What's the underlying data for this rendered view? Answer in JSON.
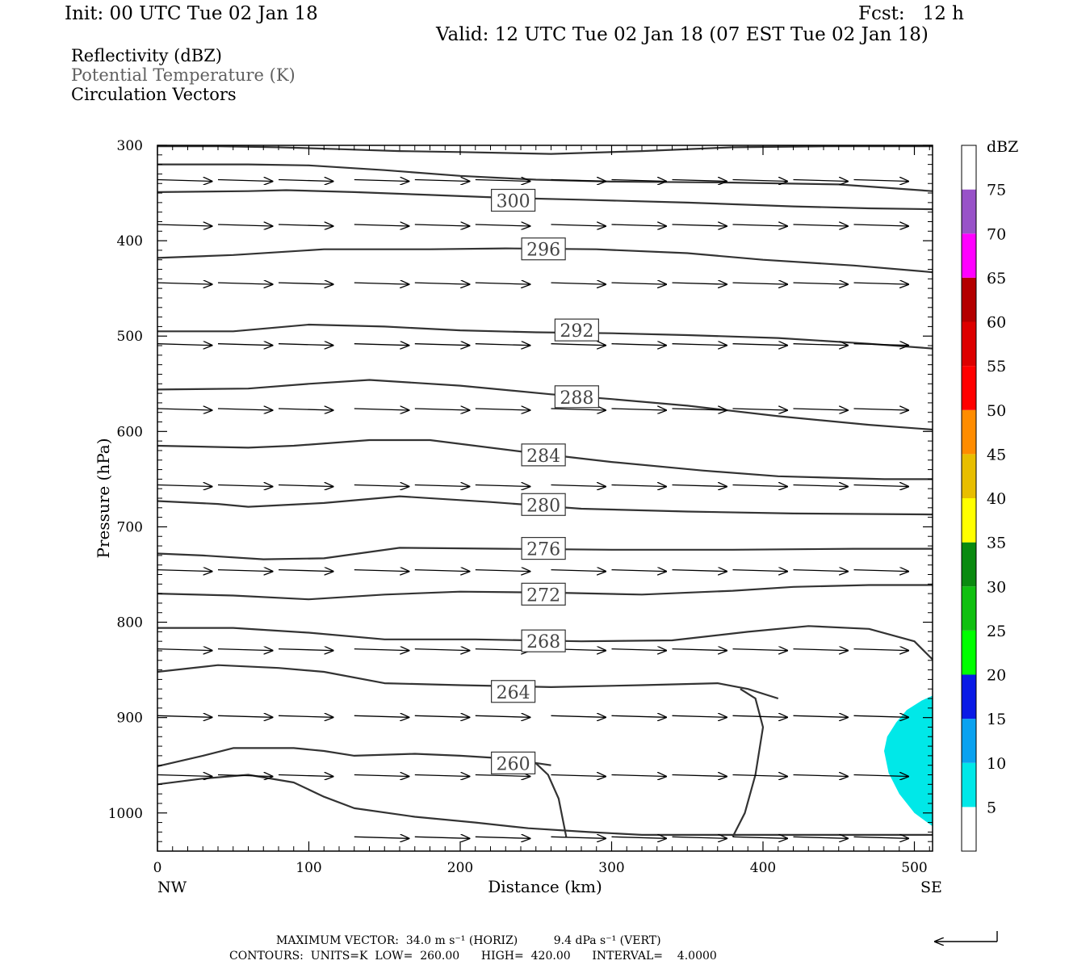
{
  "header": {
    "init": "Init: 00 UTC Tue 02 Jan 18",
    "fcst": "Fcst:   12 h",
    "valid": "Valid: 12 UTC Tue 02 Jan 18 (07 EST Tue 02 Jan 18)"
  },
  "fields": {
    "reflectivity": "Reflectivity (dBZ)",
    "theta": "Potential Temperature (K)",
    "vectors": "Circulation Vectors"
  },
  "footer": {
    "max_vector": "MAXIMUM VECTOR:  34.0 m s⁻¹ (HORIZ)          9.4 dPa s⁻¹ (VERT)",
    "contours": "CONTOURS:  UNITS=K  LOW=  260.00      HIGH=  420.00      INTERVAL=    4.0000"
  },
  "chart_data": {
    "type": "line",
    "title": "",
    "xlabel": "Distance (km)",
    "ylabel": "Pressure (hPa)",
    "x_end_labels": {
      "left": "NW",
      "right": "SE"
    },
    "xlim": [
      0,
      512
    ],
    "ylim": [
      1040,
      300
    ],
    "x_ticks": [
      "0",
      "100",
      "200",
      "300",
      "400",
      "500"
    ],
    "y_ticks": [
      "300",
      "400",
      "500",
      "600",
      "700",
      "800",
      "900",
      "1000"
    ],
    "contour_units": "K",
    "contour_low": 260,
    "contour_high": 420,
    "contour_interval": 4,
    "contour_labels": [
      {
        "value": "300",
        "x": 235,
        "p": 358
      },
      {
        "value": "296",
        "x": 255,
        "p": 409
      },
      {
        "value": "292",
        "x": 277,
        "p": 494
      },
      {
        "value": "288",
        "x": 277,
        "p": 564
      },
      {
        "value": "284",
        "x": 255,
        "p": 625
      },
      {
        "value": "280",
        "x": 255,
        "p": 677
      },
      {
        "value": "276",
        "x": 255,
        "p": 723
      },
      {
        "value": "272",
        "x": 255,
        "p": 771
      },
      {
        "value": "268",
        "x": 255,
        "p": 820
      },
      {
        "value": "264",
        "x": 235,
        "p": 873
      },
      {
        "value": "260",
        "x": 235,
        "p": 948
      }
    ],
    "isentropes": [
      [
        [
          0,
          301
        ],
        [
          40,
          301
        ],
        [
          80,
          302
        ],
        [
          120,
          304
        ],
        [
          160,
          306
        ],
        [
          200,
          307
        ],
        [
          260,
          309
        ],
        [
          320,
          306
        ],
        [
          380,
          302
        ],
        [
          440,
          301
        ],
        [
          480,
          301
        ],
        [
          512,
          301
        ]
      ],
      [
        [
          0,
          320
        ],
        [
          60,
          320
        ],
        [
          100,
          321
        ],
        [
          150,
          326
        ],
        [
          200,
          332
        ],
        [
          250,
          336
        ],
        [
          300,
          338
        ],
        [
          380,
          339
        ],
        [
          450,
          341
        ],
        [
          512,
          348
        ]
      ],
      [
        [
          0,
          349
        ],
        [
          60,
          348
        ],
        [
          85,
          347
        ],
        [
          130,
          349
        ],
        [
          180,
          352
        ],
        [
          230,
          355
        ],
        [
          280,
          357
        ],
        [
          350,
          360
        ],
        [
          420,
          364
        ],
        [
          470,
          366
        ],
        [
          512,
          367
        ]
      ],
      [
        [
          0,
          418
        ],
        [
          50,
          415
        ],
        [
          110,
          409
        ],
        [
          180,
          409
        ],
        [
          230,
          408
        ],
        [
          290,
          409
        ],
        [
          350,
          413
        ],
        [
          400,
          420
        ],
        [
          460,
          426
        ],
        [
          512,
          433
        ]
      ],
      [
        [
          0,
          495
        ],
        [
          50,
          495
        ],
        [
          100,
          488
        ],
        [
          150,
          490
        ],
        [
          200,
          494
        ],
        [
          250,
          496
        ],
        [
          300,
          497
        ],
        [
          350,
          499
        ],
        [
          410,
          502
        ],
        [
          470,
          508
        ],
        [
          512,
          513
        ]
      ],
      [
        [
          0,
          556
        ],
        [
          60,
          555
        ],
        [
          100,
          550
        ],
        [
          140,
          546
        ],
        [
          200,
          552
        ],
        [
          260,
          561
        ],
        [
          300,
          566
        ],
        [
          350,
          573
        ],
        [
          410,
          584
        ],
        [
          470,
          593
        ],
        [
          512,
          598
        ]
      ],
      [
        [
          0,
          615
        ],
        [
          60,
          617
        ],
        [
          90,
          615
        ],
        [
          140,
          609
        ],
        [
          180,
          609
        ],
        [
          240,
          621
        ],
        [
          300,
          632
        ],
        [
          360,
          641
        ],
        [
          410,
          647
        ],
        [
          480,
          650
        ],
        [
          512,
          650
        ]
      ],
      [
        [
          0,
          673
        ],
        [
          40,
          676
        ],
        [
          60,
          679
        ],
        [
          110,
          675
        ],
        [
          160,
          668
        ],
        [
          220,
          674
        ],
        [
          280,
          681
        ],
        [
          350,
          684
        ],
        [
          420,
          686
        ],
        [
          512,
          687
        ]
      ],
      [
        [
          0,
          728
        ],
        [
          30,
          730
        ],
        [
          70,
          734
        ],
        [
          110,
          733
        ],
        [
          160,
          722
        ],
        [
          230,
          723
        ],
        [
          300,
          724
        ],
        [
          380,
          724
        ],
        [
          460,
          723
        ],
        [
          512,
          723
        ]
      ],
      [
        [
          0,
          770
        ],
        [
          50,
          772
        ],
        [
          100,
          776
        ],
        [
          150,
          771
        ],
        [
          200,
          768
        ],
        [
          260,
          769
        ],
        [
          320,
          771
        ],
        [
          380,
          767
        ],
        [
          420,
          763
        ],
        [
          470,
          761
        ],
        [
          512,
          761
        ]
      ],
      [
        [
          0,
          806
        ],
        [
          50,
          806
        ],
        [
          100,
          811
        ],
        [
          150,
          818
        ],
        [
          210,
          818
        ],
        [
          280,
          820
        ],
        [
          340,
          819
        ],
        [
          390,
          810
        ],
        [
          430,
          804
        ],
        [
          470,
          807
        ],
        [
          500,
          820
        ],
        [
          512,
          839
        ]
      ],
      [
        [
          0,
          852
        ],
        [
          40,
          845
        ],
        [
          80,
          848
        ],
        [
          110,
          852
        ],
        [
          150,
          864
        ],
        [
          200,
          866
        ],
        [
          260,
          868
        ],
        [
          320,
          866
        ],
        [
          370,
          864
        ],
        [
          390,
          870
        ],
        [
          410,
          880
        ]
      ],
      [
        [
          0,
          951
        ],
        [
          30,
          940
        ],
        [
          50,
          932
        ],
        [
          90,
          932
        ],
        [
          110,
          935
        ],
        [
          130,
          940
        ],
        [
          170,
          938
        ],
        [
          200,
          940
        ],
        [
          230,
          943
        ],
        [
          260,
          950
        ]
      ],
      [
        [
          0,
          970
        ],
        [
          30,
          964
        ],
        [
          60,
          960
        ],
        [
          90,
          968
        ],
        [
          110,
          983
        ],
        [
          130,
          995
        ],
        [
          170,
          1004
        ],
        [
          210,
          1010
        ],
        [
          245,
          1016
        ],
        [
          285,
          1020
        ],
        [
          320,
          1023
        ],
        [
          380,
          1023
        ],
        [
          450,
          1023
        ],
        [
          512,
          1023
        ]
      ]
    ],
    "vertical_contours": [
      [
        [
          250,
          948
        ],
        [
          258,
          960
        ],
        [
          265,
          985
        ],
        [
          270,
          1025
        ]
      ],
      [
        [
          385,
          870
        ],
        [
          395,
          880
        ],
        [
          400,
          910
        ],
        [
          395,
          960
        ],
        [
          388,
          1000
        ],
        [
          380,
          1025
        ]
      ]
    ],
    "reflectivity_scale": {
      "unit": "dBZ",
      "labels": [
        "5",
        "10",
        "15",
        "20",
        "25",
        "30",
        "35",
        "40",
        "45",
        "50",
        "55",
        "60",
        "65",
        "70",
        "75"
      ],
      "colors": [
        "#00e8e8",
        "#0aa2f0",
        "#0a1ae6",
        "#00ff00",
        "#10c010",
        "#0a8a10",
        "#ffff00",
        "#e8be00",
        "#ff8c00",
        "#ff0000",
        "#dd0000",
        "#b40000",
        "#ff00ff",
        "#9852c8",
        "#ffffff"
      ]
    },
    "reflectivity_area": {
      "dbz": "5-10",
      "outline": [
        [
          512,
          877
        ],
        [
          505,
          882
        ],
        [
          495,
          892
        ],
        [
          488,
          905
        ],
        [
          482,
          920
        ],
        [
          480,
          935
        ],
        [
          483,
          958
        ],
        [
          490,
          980
        ],
        [
          500,
          1000
        ],
        [
          512,
          1014
        ]
      ]
    },
    "vector_rows": [
      {
        "p": 336,
        "x0": [
          0,
          130,
          260,
          380
        ],
        "dx": 40
      },
      {
        "p": 383,
        "x0": [
          0,
          130,
          260,
          380
        ],
        "dx": 40
      },
      {
        "p": 444,
        "x0": [
          0,
          130,
          260,
          380
        ],
        "dx": 40
      },
      {
        "p": 508,
        "x0": [
          0,
          130,
          260,
          380
        ],
        "dx": 40
      },
      {
        "p": 576,
        "x0": [
          0,
          130,
          260,
          380
        ],
        "dx": 40
      },
      {
        "p": 656,
        "x0": [
          0,
          130,
          260,
          380
        ],
        "dx": 40
      },
      {
        "p": 745,
        "x0": [
          0,
          130,
          260,
          380
        ],
        "dx": 40
      },
      {
        "p": 828,
        "x0": [
          0,
          130,
          260,
          380
        ],
        "dx": 40
      },
      {
        "p": 898,
        "x0": [
          0,
          130,
          260,
          380
        ],
        "dx": 40
      },
      {
        "p": 960,
        "x0": [
          0,
          130,
          260,
          380
        ],
        "dx": 40
      },
      {
        "p": 1025,
        "x0": [
          130,
          260,
          380
        ],
        "dx": 40
      }
    ]
  }
}
